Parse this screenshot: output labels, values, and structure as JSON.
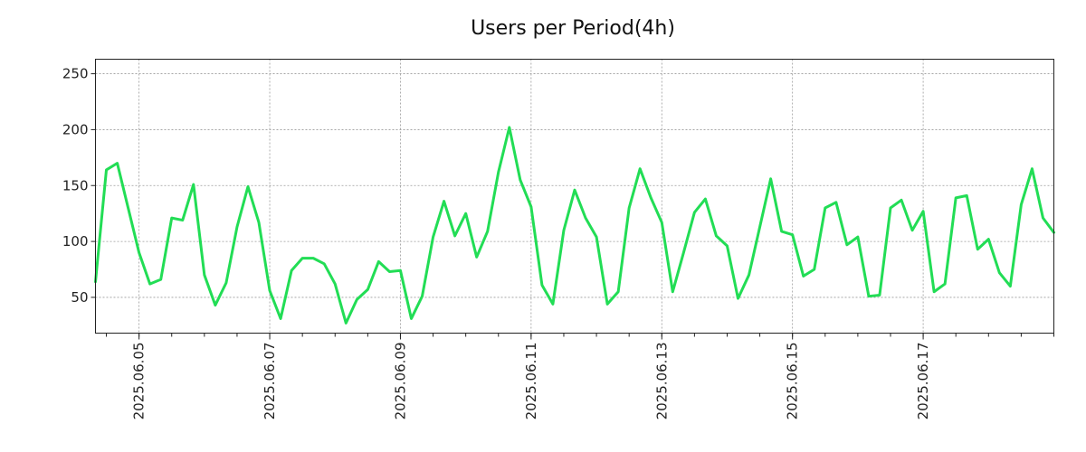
{
  "chart_data": {
    "type": "line",
    "title": "Users per Period(4h)",
    "xlabel": "",
    "ylabel": "",
    "ylim": [
      18,
      263
    ],
    "yticks": [
      50,
      100,
      150,
      200,
      250
    ],
    "x_start": "2025-06-04 08:00",
    "x_step_hours": 4,
    "xticks": [
      "2025.06.05",
      "2025.06.07",
      "2025.06.09",
      "2025.06.11",
      "2025.06.13",
      "2025.06.15",
      "2025.06.17"
    ],
    "grid": true,
    "legend": "none",
    "colors": {
      "line": "#22dd55"
    },
    "series": [
      {
        "values": [
          64,
          164,
          170,
          130,
          90,
          62,
          66,
          121,
          119,
          151,
          70,
          43,
          63,
          113,
          149,
          117,
          56,
          31,
          74,
          85,
          85,
          80,
          62,
          27,
          48,
          57,
          82,
          73,
          74,
          31,
          51,
          104,
          136,
          105,
          125,
          86,
          109,
          162,
          202,
          155,
          131,
          61,
          44,
          110,
          146,
          121,
          104,
          44,
          55,
          130,
          165,
          139,
          117,
          55,
          90,
          126,
          138,
          105,
          96,
          49,
          70,
          113,
          156,
          109,
          106,
          69,
          75,
          130,
          135,
          97,
          104,
          51,
          52,
          130,
          137,
          110,
          127,
          55,
          62,
          139,
          141,
          93,
          102,
          72,
          60,
          133,
          165,
          121,
          108
        ]
      }
    ]
  }
}
